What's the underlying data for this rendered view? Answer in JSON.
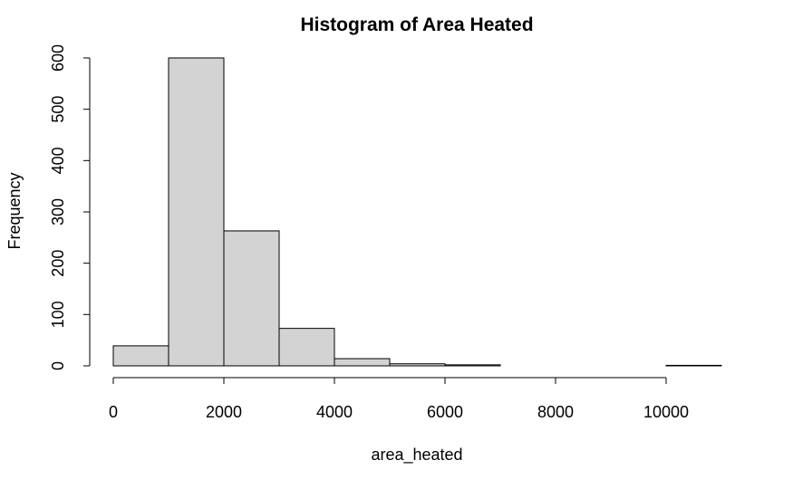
{
  "chart_data": {
    "type": "bar",
    "title": "Histogram of Area Heated",
    "xlabel": "area_heated",
    "ylabel": "Frequency",
    "bins": [
      {
        "from": 0,
        "to": 1000,
        "count": 39
      },
      {
        "from": 1000,
        "to": 2000,
        "count": 600
      },
      {
        "from": 2000,
        "to": 3000,
        "count": 263
      },
      {
        "from": 3000,
        "to": 4000,
        "count": 73
      },
      {
        "from": 4000,
        "to": 5000,
        "count": 14
      },
      {
        "from": 5000,
        "to": 6000,
        "count": 4
      },
      {
        "from": 6000,
        "to": 7000,
        "count": 2
      },
      {
        "from": 7000,
        "to": 8000,
        "count": 0
      },
      {
        "from": 8000,
        "to": 9000,
        "count": 0
      },
      {
        "from": 9000,
        "to": 10000,
        "count": 0
      },
      {
        "from": 10000,
        "to": 11000,
        "count": 1
      }
    ],
    "xticks": [
      0,
      2000,
      4000,
      6000,
      8000,
      10000
    ],
    "yticks": [
      0,
      100,
      200,
      300,
      400,
      500,
      600
    ],
    "xlim": [
      0,
      11000
    ],
    "ylim": [
      0,
      600
    ],
    "grid": false,
    "bar_color": "#d3d3d3"
  }
}
